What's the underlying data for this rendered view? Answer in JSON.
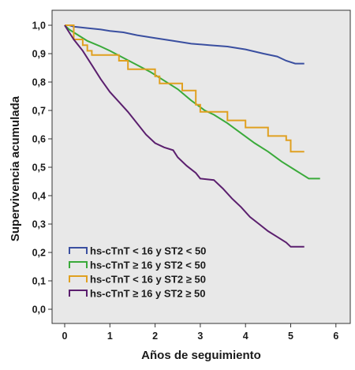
{
  "chart_data": {
    "type": "line",
    "subtype": "kaplan-meier-step",
    "title": "",
    "xlabel": "Años de seguimiento",
    "ylabel": "Supervivencia acumulada",
    "xlim": [
      -0.4,
      6.3
    ],
    "ylim": [
      -0.05,
      1.05
    ],
    "xticks": [
      0,
      1,
      2,
      3,
      4,
      5,
      6
    ],
    "xtick_labels": [
      "0",
      "1",
      "2",
      "3",
      "4",
      "5",
      "6"
    ],
    "yticks": [
      0.0,
      0.1,
      0.2,
      0.3,
      0.4,
      0.5,
      0.6,
      0.7,
      0.8,
      0.9,
      1.0
    ],
    "ytick_labels": [
      "0,0",
      "0,1",
      "0,2",
      "0,3",
      "0,4",
      "0,5",
      "0,6",
      "0,7",
      "0,8",
      "0,9",
      "1,0"
    ],
    "grid": false,
    "legend_position": "bottom-left",
    "plot_background": "#e8e8e8",
    "series": [
      {
        "name": "hs-cTnT < 16 y ST2 < 50",
        "color": "#3a4fa0",
        "points": [
          [
            0,
            1.0
          ],
          [
            0.1,
            1.0
          ],
          [
            0.2,
            0.995
          ],
          [
            0.5,
            0.99
          ],
          [
            0.8,
            0.985
          ],
          [
            1.0,
            0.98
          ],
          [
            1.3,
            0.975
          ],
          [
            1.6,
            0.965
          ],
          [
            2.0,
            0.955
          ],
          [
            2.4,
            0.945
          ],
          [
            2.8,
            0.935
          ],
          [
            3.2,
            0.93
          ],
          [
            3.6,
            0.925
          ],
          [
            4.0,
            0.915
          ],
          [
            4.4,
            0.9
          ],
          [
            4.7,
            0.89
          ],
          [
            4.9,
            0.875
          ],
          [
            5.1,
            0.865
          ],
          [
            5.3,
            0.865
          ]
        ]
      },
      {
        "name": "hs-cTnT ≥ 16 y ST2 < 50",
        "color": "#3aaa3a",
        "points": [
          [
            0,
            1.0
          ],
          [
            0.1,
            0.985
          ],
          [
            0.3,
            0.965
          ],
          [
            0.5,
            0.945
          ],
          [
            0.8,
            0.925
          ],
          [
            1.0,
            0.91
          ],
          [
            1.3,
            0.885
          ],
          [
            1.6,
            0.86
          ],
          [
            1.9,
            0.835
          ],
          [
            2.2,
            0.805
          ],
          [
            2.5,
            0.775
          ],
          [
            2.8,
            0.735
          ],
          [
            3.1,
            0.7
          ],
          [
            3.3,
            0.685
          ],
          [
            3.6,
            0.655
          ],
          [
            3.9,
            0.62
          ],
          [
            4.2,
            0.585
          ],
          [
            4.5,
            0.555
          ],
          [
            4.8,
            0.52
          ],
          [
            5.1,
            0.49
          ],
          [
            5.4,
            0.46
          ],
          [
            5.65,
            0.46
          ]
        ]
      },
      {
        "name": "hs-cTnT < 16 y ST2 ≥ 50",
        "color": "#e0a020",
        "points": [
          [
            0,
            1.0
          ],
          [
            0.2,
            0.95
          ],
          [
            0.4,
            0.93
          ],
          [
            0.5,
            0.91
          ],
          [
            0.6,
            0.895
          ],
          [
            1.0,
            0.895
          ],
          [
            1.2,
            0.875
          ],
          [
            1.4,
            0.845
          ],
          [
            1.6,
            0.845
          ],
          [
            2.0,
            0.82
          ],
          [
            2.1,
            0.795
          ],
          [
            2.4,
            0.795
          ],
          [
            2.6,
            0.77
          ],
          [
            2.9,
            0.72
          ],
          [
            3.0,
            0.695
          ],
          [
            3.5,
            0.695
          ],
          [
            3.6,
            0.665
          ],
          [
            4.0,
            0.64
          ],
          [
            4.4,
            0.64
          ],
          [
            4.5,
            0.61
          ],
          [
            4.9,
            0.595
          ],
          [
            5.0,
            0.555
          ],
          [
            5.3,
            0.555
          ]
        ]
      },
      {
        "name": "hs-cTnT ≥ 16 y ST2 ≥ 50",
        "color": "#5b1f6e",
        "points": [
          [
            0,
            1.0
          ],
          [
            0.1,
            0.975
          ],
          [
            0.2,
            0.95
          ],
          [
            0.4,
            0.91
          ],
          [
            0.6,
            0.86
          ],
          [
            0.8,
            0.81
          ],
          [
            1.0,
            0.765
          ],
          [
            1.2,
            0.73
          ],
          [
            1.4,
            0.695
          ],
          [
            1.6,
            0.655
          ],
          [
            1.8,
            0.615
          ],
          [
            2.0,
            0.585
          ],
          [
            2.2,
            0.57
          ],
          [
            2.4,
            0.56
          ],
          [
            2.5,
            0.535
          ],
          [
            2.7,
            0.505
          ],
          [
            2.9,
            0.48
          ],
          [
            3.0,
            0.46
          ],
          [
            3.3,
            0.455
          ],
          [
            3.5,
            0.425
          ],
          [
            3.7,
            0.39
          ],
          [
            3.9,
            0.36
          ],
          [
            4.1,
            0.325
          ],
          [
            4.3,
            0.3
          ],
          [
            4.5,
            0.275
          ],
          [
            4.7,
            0.255
          ],
          [
            4.9,
            0.235
          ],
          [
            5.0,
            0.22
          ],
          [
            5.3,
            0.22
          ]
        ]
      }
    ]
  }
}
